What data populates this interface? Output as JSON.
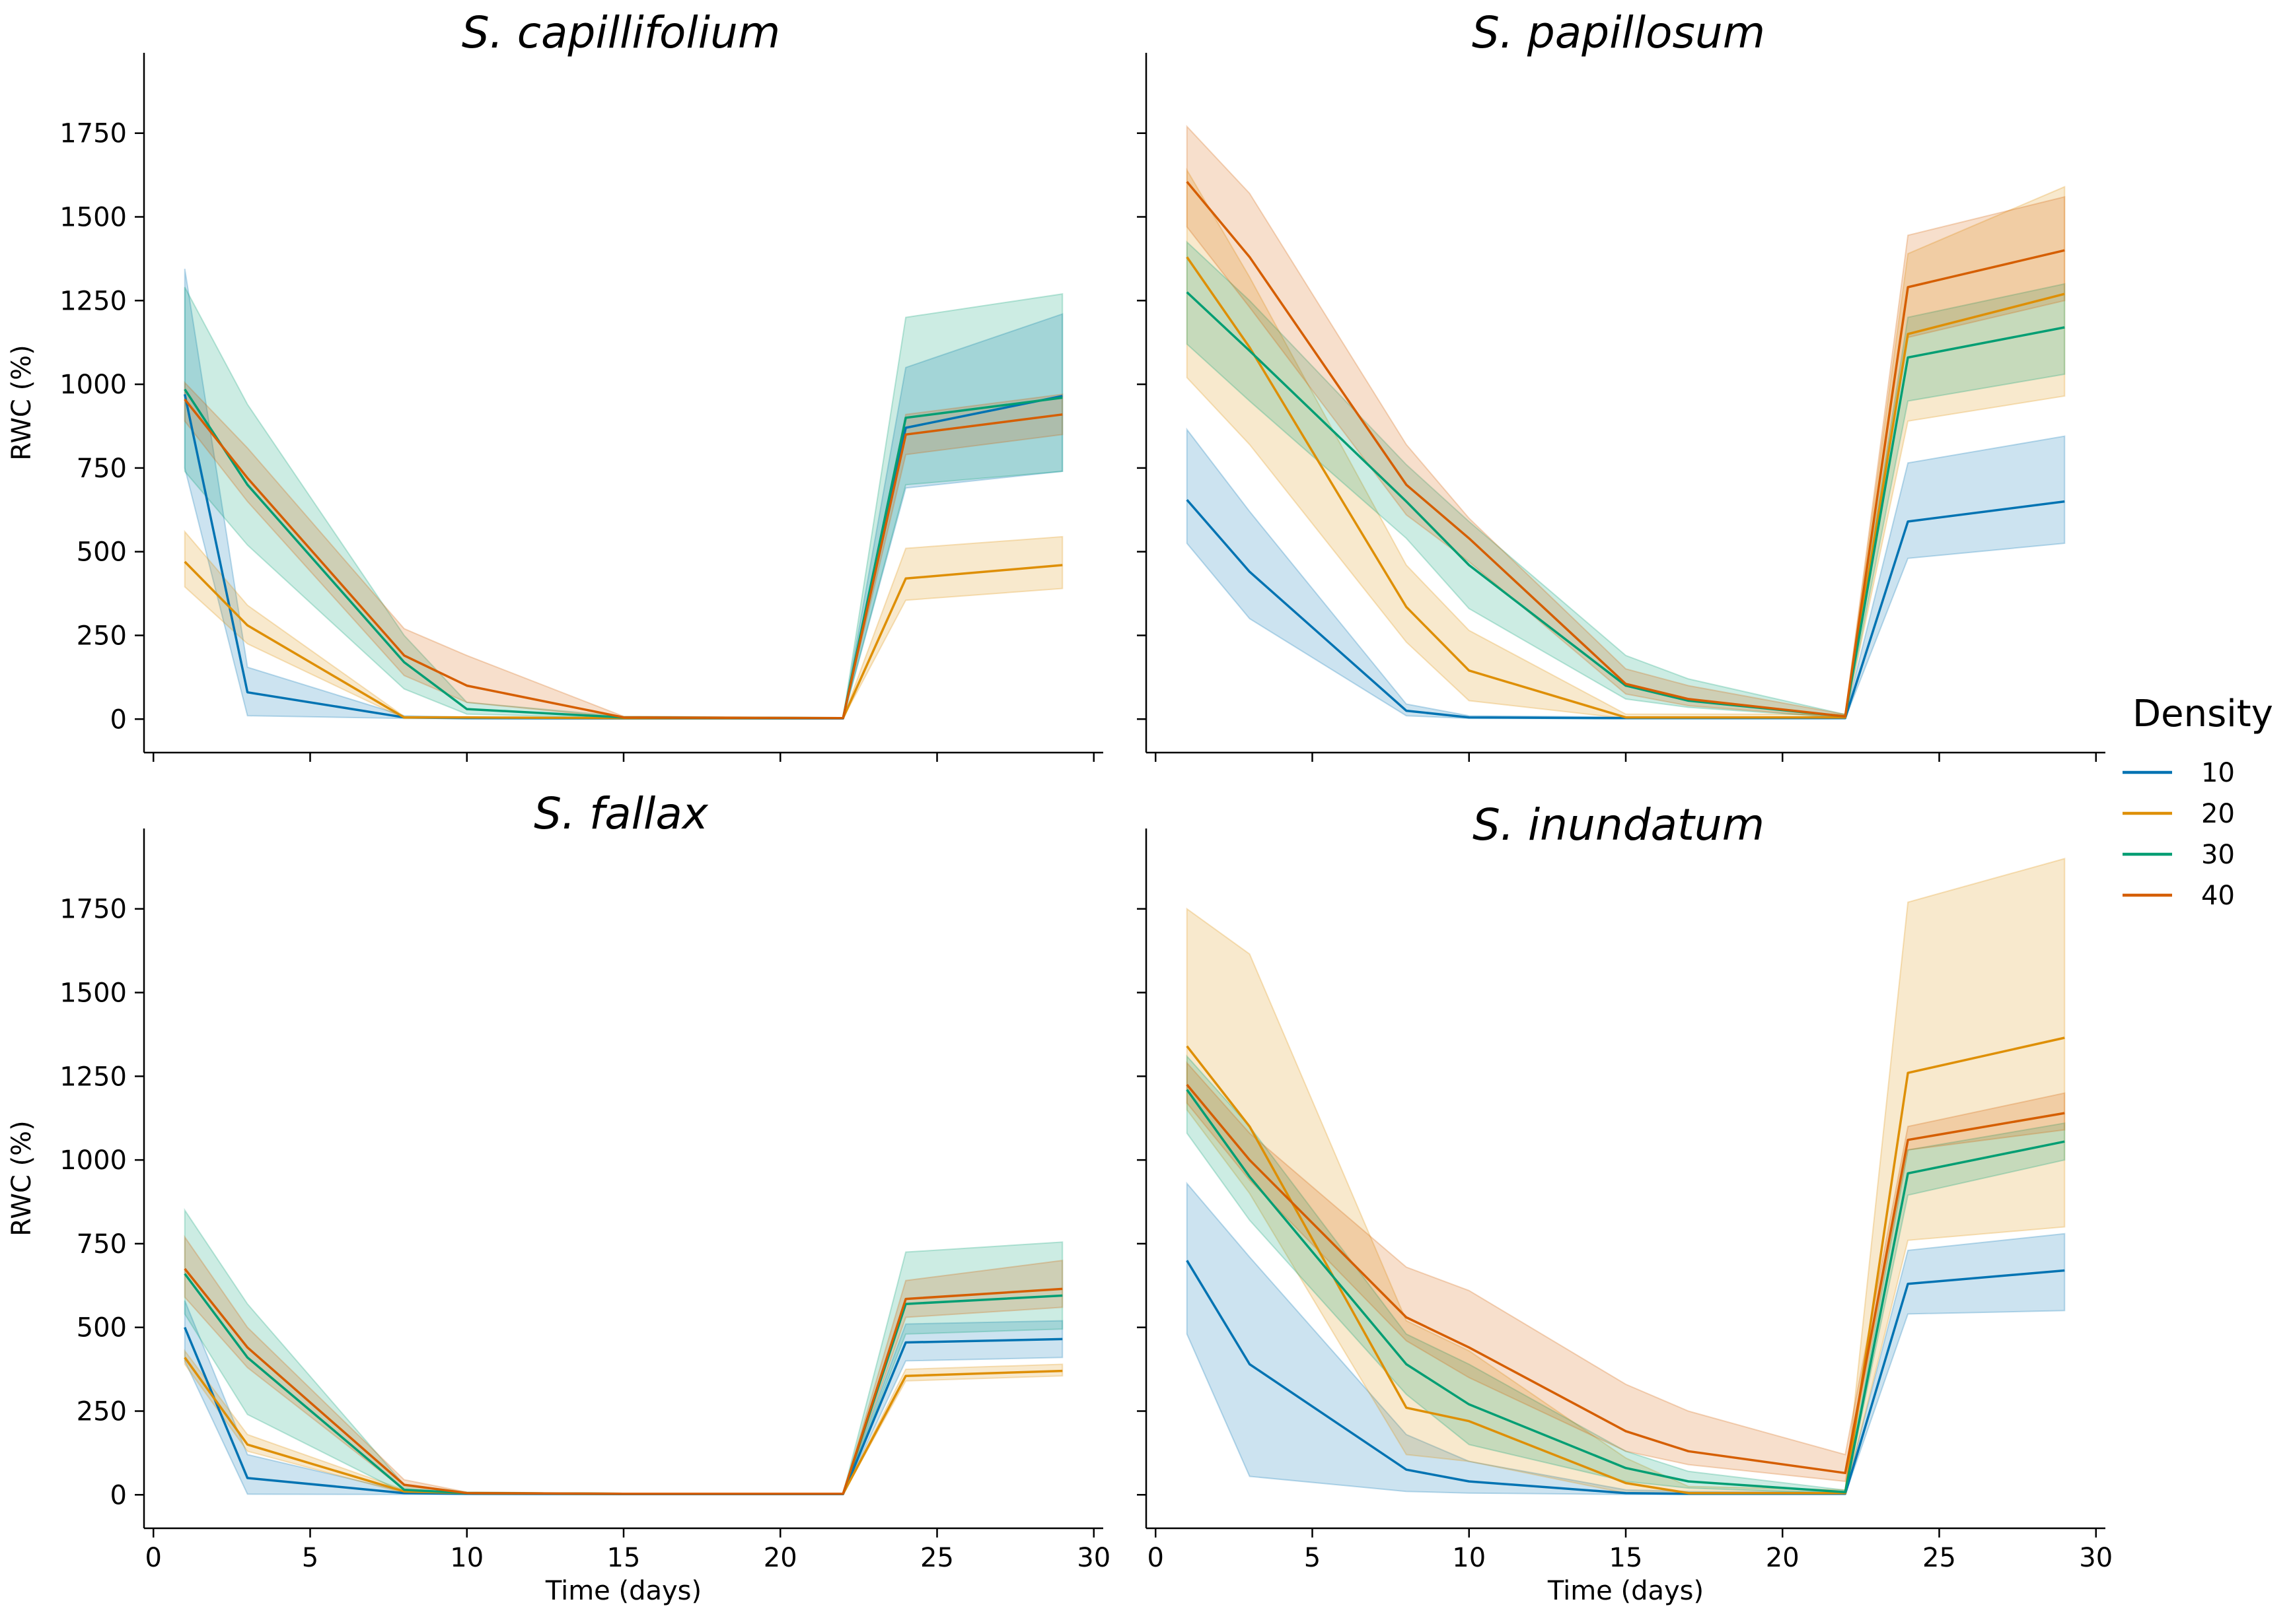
{
  "figure": {
    "legend": {
      "title": "Density",
      "placement": "right-center",
      "entries": [
        {
          "label": "10",
          "color": "#0173b2"
        },
        {
          "label": "20",
          "color": "#de8f05"
        },
        {
          "label": "30",
          "color": "#029e73"
        },
        {
          "label": "40",
          "color": "#d55e00"
        }
      ]
    }
  },
  "chart_data": [
    {
      "type": "line",
      "title": "S. capillifolium",
      "xlabel": "",
      "ylabel": "RWC (%)",
      "xlim": [
        -0.3,
        30.3
      ],
      "ylim": [
        -100,
        1990
      ],
      "xticks": [
        0,
        5,
        10,
        15,
        20,
        25,
        30
      ],
      "yticks": [
        0,
        250,
        500,
        750,
        1000,
        1250,
        1500,
        1750
      ],
      "show_xtick_labels": false,
      "show_ytick_labels": true,
      "x": [
        1,
        3,
        8,
        10,
        15,
        22,
        24,
        29
      ],
      "series": [
        {
          "name": "10",
          "values": [
            970,
            80,
            5,
            3,
            2,
            2,
            870,
            965
          ],
          "lower": [
            750,
            10,
            2,
            1,
            1,
            1,
            690,
            740
          ],
          "upper": [
            1345,
            155,
            10,
            6,
            4,
            4,
            1050,
            1210
          ]
        },
        {
          "name": "20",
          "values": [
            470,
            280,
            5,
            5,
            3,
            3,
            420,
            460
          ],
          "lower": [
            395,
            225,
            2,
            3,
            2,
            2,
            355,
            390
          ],
          "upper": [
            560,
            340,
            8,
            7,
            4,
            4,
            510,
            545
          ]
        },
        {
          "name": "30",
          "values": [
            985,
            700,
            170,
            30,
            5,
            3,
            900,
            960
          ],
          "lower": [
            740,
            520,
            90,
            15,
            3,
            2,
            700,
            740
          ],
          "upper": [
            1290,
            940,
            250,
            50,
            8,
            4,
            1200,
            1270
          ]
        },
        {
          "name": "40",
          "values": [
            955,
            720,
            190,
            100,
            5,
            3,
            850,
            910
          ],
          "lower": [
            890,
            650,
            130,
            50,
            3,
            2,
            790,
            850
          ],
          "upper": [
            1005,
            810,
            270,
            190,
            8,
            4,
            910,
            970
          ]
        }
      ]
    },
    {
      "type": "line",
      "title": "S. papillosum",
      "xlabel": "",
      "ylabel": "",
      "xlim": [
        -0.3,
        30.3
      ],
      "ylim": [
        -100,
        1990
      ],
      "xticks": [
        0,
        5,
        10,
        15,
        20,
        25,
        30
      ],
      "yticks": [
        0,
        250,
        500,
        750,
        1000,
        1250,
        1500,
        1750
      ],
      "show_xtick_labels": false,
      "show_ytick_labels": false,
      "x": [
        1,
        3,
        8,
        10,
        15,
        17,
        22,
        24,
        29
      ],
      "series": [
        {
          "name": "10",
          "values": [
            655,
            440,
            25,
            5,
            3,
            3,
            3,
            590,
            650
          ],
          "lower": [
            525,
            300,
            10,
            2,
            1,
            1,
            1,
            480,
            525
          ],
          "upper": [
            865,
            620,
            45,
            10,
            6,
            6,
            6,
            765,
            845
          ]
        },
        {
          "name": "20",
          "values": [
            1380,
            1110,
            335,
            145,
            5,
            5,
            5,
            1150,
            1270
          ],
          "lower": [
            1020,
            820,
            230,
            55,
            2,
            2,
            2,
            890,
            965
          ],
          "upper": [
            1640,
            1320,
            460,
            265,
            15,
            15,
            15,
            1390,
            1590
          ]
        },
        {
          "name": "30",
          "values": [
            1275,
            1100,
            650,
            460,
            100,
            55,
            8,
            1080,
            1170
          ],
          "lower": [
            1120,
            950,
            540,
            330,
            60,
            35,
            4,
            950,
            1030
          ],
          "upper": [
            1425,
            1250,
            760,
            590,
            190,
            120,
            14,
            1200,
            1300
          ]
        },
        {
          "name": "40",
          "values": [
            1605,
            1380,
            700,
            540,
            105,
            60,
            8,
            1290,
            1400
          ],
          "lower": [
            1470,
            1230,
            610,
            470,
            75,
            40,
            4,
            1140,
            1250
          ],
          "upper": [
            1770,
            1570,
            820,
            600,
            150,
            100,
            14,
            1445,
            1560
          ]
        }
      ]
    },
    {
      "type": "line",
      "title": "S. fallax",
      "xlabel": "Time (days)",
      "ylabel": "RWC (%)",
      "xlim": [
        -0.3,
        30.3
      ],
      "ylim": [
        -100,
        1990
      ],
      "xticks": [
        0,
        5,
        10,
        15,
        20,
        25,
        30
      ],
      "yticks": [
        0,
        250,
        500,
        750,
        1000,
        1250,
        1500,
        1750
      ],
      "show_xtick_labels": true,
      "show_ytick_labels": true,
      "x": [
        1,
        3,
        8,
        10,
        15,
        22,
        24,
        29
      ],
      "series": [
        {
          "name": "10",
          "values": [
            500,
            50,
            5,
            3,
            2,
            2,
            455,
            465
          ],
          "lower": [
            400,
            2,
            1,
            1,
            1,
            1,
            400,
            410
          ],
          "upper": [
            580,
            120,
            10,
            5,
            4,
            4,
            510,
            520
          ]
        },
        {
          "name": "20",
          "values": [
            410,
            150,
            10,
            5,
            3,
            3,
            355,
            370
          ],
          "lower": [
            390,
            130,
            5,
            3,
            2,
            2,
            340,
            355
          ],
          "upper": [
            430,
            180,
            15,
            7,
            4,
            4,
            375,
            390
          ]
        },
        {
          "name": "30",
          "values": [
            660,
            410,
            15,
            5,
            3,
            3,
            570,
            595
          ],
          "lower": [
            540,
            240,
            5,
            3,
            2,
            2,
            480,
            495
          ],
          "upper": [
            850,
            570,
            30,
            8,
            4,
            4,
            725,
            755
          ]
        },
        {
          "name": "40",
          "values": [
            675,
            440,
            30,
            5,
            3,
            3,
            585,
            615
          ],
          "lower": [
            590,
            380,
            15,
            3,
            2,
            2,
            530,
            560
          ],
          "upper": [
            770,
            500,
            45,
            8,
            4,
            4,
            640,
            700
          ]
        }
      ]
    },
    {
      "type": "line",
      "title": "S. inundatum",
      "xlabel": "Time (days)",
      "ylabel": "",
      "xlim": [
        -0.3,
        30.3
      ],
      "ylim": [
        -100,
        1990
      ],
      "xticks": [
        0,
        5,
        10,
        15,
        20,
        25,
        30
      ],
      "yticks": [
        0,
        250,
        500,
        750,
        1000,
        1250,
        1500,
        1750
      ],
      "show_xtick_labels": true,
      "show_ytick_labels": false,
      "x": [
        1,
        3,
        8,
        10,
        15,
        17,
        22,
        24,
        29
      ],
      "series": [
        {
          "name": "10",
          "values": [
            700,
            390,
            75,
            40,
            5,
            3,
            3,
            630,
            670
          ],
          "lower": [
            480,
            55,
            10,
            5,
            1,
            1,
            1,
            540,
            550
          ],
          "upper": [
            930,
            710,
            180,
            100,
            15,
            10,
            8,
            730,
            780
          ]
        },
        {
          "name": "20",
          "values": [
            1340,
            1100,
            260,
            220,
            35,
            5,
            5,
            1260,
            1365
          ],
          "lower": [
            1150,
            900,
            120,
            100,
            5,
            2,
            2,
            760,
            800
          ],
          "upper": [
            1750,
            1615,
            520,
            430,
            110,
            25,
            15,
            1770,
            1900
          ]
        },
        {
          "name": "30",
          "values": [
            1210,
            950,
            390,
            270,
            80,
            40,
            8,
            960,
            1055
          ],
          "lower": [
            1080,
            820,
            300,
            150,
            40,
            20,
            4,
            895,
            1000
          ],
          "upper": [
            1310,
            1100,
            480,
            390,
            130,
            70,
            14,
            1030,
            1110
          ]
        },
        {
          "name": "40",
          "values": [
            1225,
            1000,
            530,
            440,
            190,
            130,
            65,
            1060,
            1140
          ],
          "lower": [
            1170,
            940,
            460,
            350,
            130,
            90,
            40,
            1030,
            1090
          ],
          "upper": [
            1290,
            1080,
            680,
            610,
            330,
            250,
            120,
            1100,
            1200
          ]
        }
      ]
    }
  ]
}
